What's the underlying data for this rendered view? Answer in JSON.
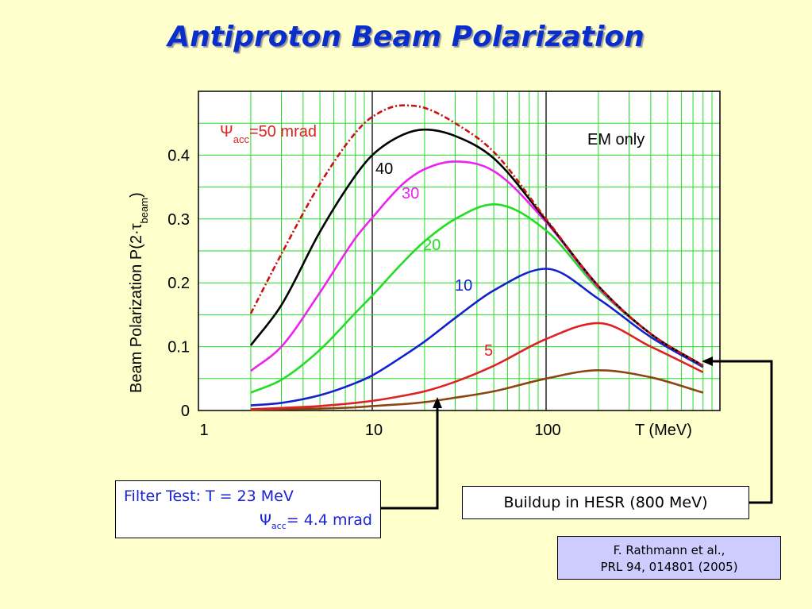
{
  "title": "Antiproton Beam Polarization",
  "chart_data": {
    "type": "line",
    "ylabel_main": "Beam Polarization P(2·τ",
    "ylabel_sub": "beam",
    "ylabel_close": ")",
    "xlabel": "T (MeV)",
    "x_scale": "log",
    "xlim": [
      1,
      1000
    ],
    "ylim": [
      0,
      0.5
    ],
    "x_ticks": [
      {
        "v": 1,
        "label": "1"
      },
      {
        "v": 10,
        "label": "10"
      },
      {
        "v": 100,
        "label": "100"
      }
    ],
    "y_ticks": [
      {
        "v": 0,
        "label": "0"
      },
      {
        "v": 0.1,
        "label": "0.1"
      },
      {
        "v": 0.2,
        "label": "0.2"
      },
      {
        "v": 0.3,
        "label": "0.3"
      },
      {
        "v": 0.4,
        "label": "0.4"
      }
    ],
    "grid": true,
    "colors": {
      "grid": "#22DD22",
      "major_grid": "#000000"
    },
    "annotation": "EM only",
    "series": [
      {
        "name": "EM only",
        "color": "#CC1111",
        "dash": true,
        "x": [
          2,
          3,
          5,
          8,
          10,
          15,
          20,
          30,
          50,
          100,
          200,
          400,
          800
        ],
        "y": [
          0.152,
          0.245,
          0.355,
          0.435,
          0.46,
          0.478,
          0.474,
          0.45,
          0.405,
          0.3,
          0.195,
          0.12,
          0.07
        ]
      },
      {
        "name": "40",
        "label_text": "40",
        "color": "#000000",
        "dash": false,
        "x": [
          2,
          3,
          5,
          8,
          10,
          15,
          20,
          30,
          50,
          100,
          200,
          400,
          800
        ],
        "y": [
          0.102,
          0.165,
          0.28,
          0.368,
          0.4,
          0.432,
          0.44,
          0.43,
          0.395,
          0.298,
          0.195,
          0.12,
          0.07
        ]
      },
      {
        "name": "30",
        "label_text": "30",
        "color": "#EE22EE",
        "dash": false,
        "x": [
          2,
          3,
          5,
          8,
          10,
          15,
          20,
          30,
          50,
          100,
          200,
          400,
          800
        ],
        "y": [
          0.062,
          0.1,
          0.185,
          0.27,
          0.302,
          0.355,
          0.378,
          0.39,
          0.375,
          0.295,
          0.193,
          0.12,
          0.07
        ]
      },
      {
        "name": "20",
        "label_text": "20",
        "color": "#22DD22",
        "dash": false,
        "x": [
          2,
          3,
          5,
          8,
          10,
          15,
          20,
          30,
          50,
          100,
          200,
          400,
          800
        ],
        "y": [
          0.028,
          0.048,
          0.095,
          0.153,
          0.18,
          0.232,
          0.265,
          0.3,
          0.323,
          0.282,
          0.19,
          0.12,
          0.07
        ]
      },
      {
        "name": "10",
        "label_text": "10",
        "color": "#1122CC",
        "dash": false,
        "x": [
          2,
          3,
          5,
          8,
          10,
          15,
          20,
          30,
          50,
          100,
          200,
          400,
          800
        ],
        "y": [
          0.008,
          0.012,
          0.024,
          0.043,
          0.055,
          0.085,
          0.108,
          0.145,
          0.188,
          0.222,
          0.175,
          0.115,
          0.068
        ]
      },
      {
        "name": "5",
        "label_text": "5",
        "color": "#DD2222",
        "dash": false,
        "x": [
          2,
          3,
          5,
          8,
          10,
          15,
          20,
          30,
          50,
          100,
          200,
          400,
          800
        ],
        "y": [
          0.002,
          0.004,
          0.007,
          0.012,
          0.015,
          0.023,
          0.03,
          0.045,
          0.07,
          0.112,
          0.137,
          0.1,
          0.06
        ]
      },
      {
        "name": "",
        "color": "#8B4513",
        "dash": false,
        "x": [
          2,
          3,
          5,
          8,
          10,
          15,
          20,
          30,
          50,
          100,
          200,
          400,
          800
        ],
        "y": [
          0.001,
          0.002,
          0.003,
          0.005,
          0.007,
          0.01,
          0.013,
          0.02,
          0.03,
          0.05,
          0.063,
          0.052,
          0.028
        ]
      }
    ],
    "psi_label": {
      "prefix": "Ψ",
      "sub": "acc",
      "suffix": "=50 mrad",
      "color": "#DD2222"
    }
  },
  "filter_box": {
    "line1": "Filter Test: T = 23 MeV",
    "line2_prefix": "Ψ",
    "line2_sub": "acc",
    "line2_suffix": "= 4.4 mrad"
  },
  "hesr_box": "Buildup in HESR (800 MeV)",
  "reference": {
    "line1": "F. Rathmann et al.,",
    "line2": "PRL 94, 014801 (2005)"
  }
}
